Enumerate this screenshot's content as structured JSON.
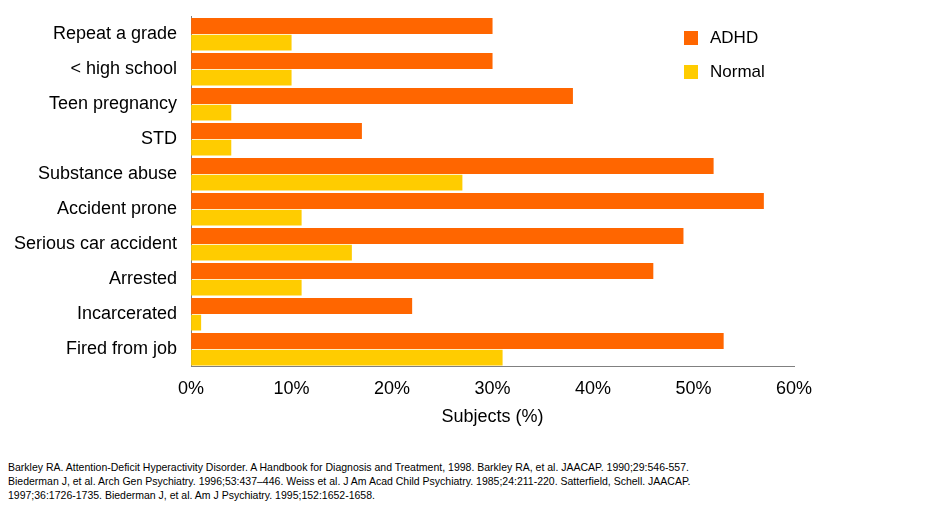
{
  "chart_data": {
    "type": "bar",
    "orientation": "horizontal",
    "categories": [
      "Repeat a grade",
      "< high school",
      "Teen pregnancy",
      "STD",
      "Substance abuse",
      "Accident prone",
      "Serious car accident",
      "Arrested",
      "Incarcerated",
      "Fired from job"
    ],
    "series": [
      {
        "name": "ADHD",
        "color": "#ff6600",
        "values": [
          30,
          30,
          38,
          17,
          52,
          57,
          49,
          46,
          22,
          53
        ]
      },
      {
        "name": "Normal",
        "color": "#ffcc00",
        "values": [
          10,
          10,
          4,
          4,
          27,
          11,
          16,
          11,
          1,
          31
        ]
      }
    ],
    "x_label": "Subjects (%)",
    "xlim": [
      0,
      60
    ],
    "xticks": [
      {
        "value": 0,
        "label": "0%"
      },
      {
        "value": 10,
        "label": "10%"
      },
      {
        "value": 20,
        "label": "20%"
      },
      {
        "value": 30,
        "label": "30%"
      },
      {
        "value": 40,
        "label": "40%"
      },
      {
        "value": 50,
        "label": "50%"
      },
      {
        "value": 60,
        "label": "60%"
      }
    ],
    "grid": false,
    "legend": "top right",
    "source": [
      "Barkley RA. Attention-Deficit Hyperactivity Disorder. A Handbook for Diagnosis and Treatment, 1998. Barkley RA, et al. JAACAP. 1990;29:546-557.",
      "Biederman J, et al. Arch Gen Psychiatry. 1996;53:437–446. Weiss et al. J Am Acad Child Psychiatry. 1985;24:211-220. Satterfield, Schell. JAACAP.",
      "1997;36:1726-1735. Biederman J, et al. Am J Psychiatry. 1995;152:1652-1658."
    ]
  }
}
